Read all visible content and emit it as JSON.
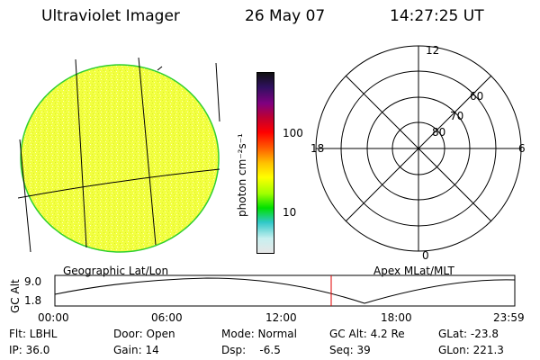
{
  "header": {
    "instrument": "Ultraviolet Imager",
    "date": "26 May 07",
    "time": "14:27:25 UT"
  },
  "colorbar": {
    "unit_label": "photon cm⁻²s⁻¹",
    "tick_labels": [
      "100",
      "10"
    ],
    "colors": [
      "#e6e6e6",
      "#c8f0f0",
      "#30c8c8",
      "#00e000",
      "#a0ff00",
      "#ffff00",
      "#ffc000",
      "#ff6000",
      "#ff0000",
      "#c00030",
      "#800080",
      "#301060",
      "#101010"
    ]
  },
  "geo_panel": {
    "label": "Geographic Lat/Lon",
    "disk_color": "#f5ff3a",
    "rim_color": "#30d030"
  },
  "polar_panel": {
    "label": "Apex MLat/MLT",
    "mlt_labels": {
      "top": "12",
      "left": "18",
      "right": "6",
      "bottom": "0"
    },
    "mlat_labels": [
      "80",
      "70",
      "60"
    ]
  },
  "timeline": {
    "y_axis_label": "GC Alt",
    "y_ticks": [
      "9.0",
      "1.8"
    ],
    "x_ticks": [
      "00:00",
      "06:00",
      "12:00",
      "18:00",
      "23:59"
    ],
    "current_marker_color": "#e00000"
  },
  "info": {
    "filter": "Flt: LBHL",
    "ip": "IP: 36.0",
    "door": "Door: Open",
    "gain": "Gain: 14",
    "mode": "Mode: Normal",
    "dsp": "Dsp:    -6.5",
    "gc_alt": "GC Alt: 4.2 Re",
    "seq": "Seq: 39",
    "glat": "GLat: -23.8",
    "glon": "GLon: 221.3"
  }
}
